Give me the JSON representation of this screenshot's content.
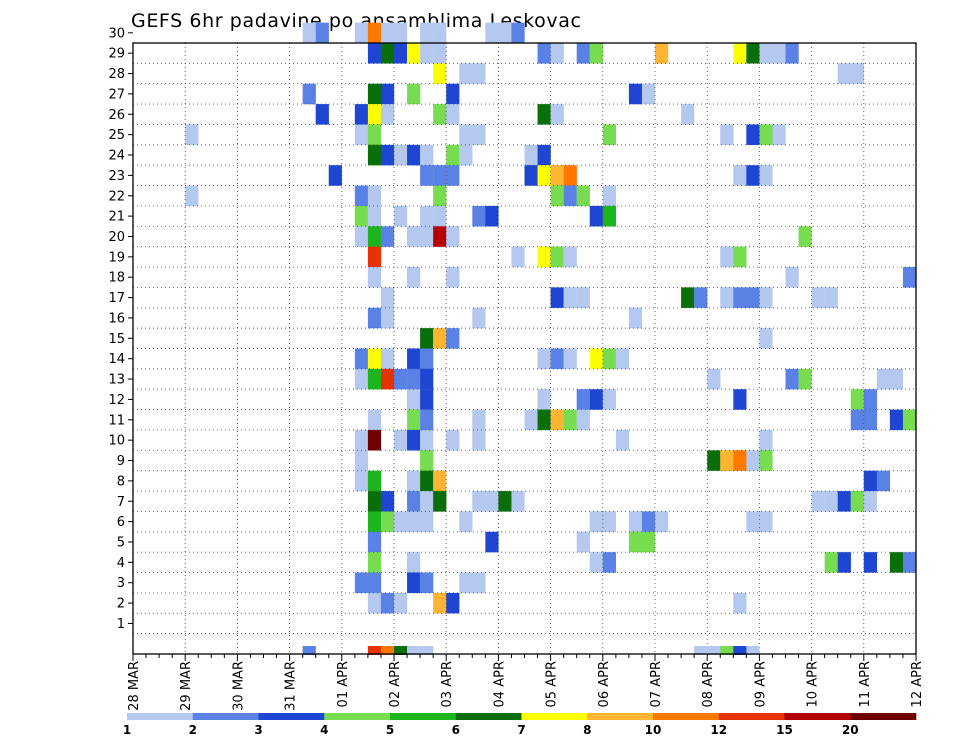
{
  "chart_data": {
    "type": "heatmap",
    "title": "GEFS 6hr padavine po ansamblima Leskovac",
    "xlabel": "",
    "ylabel": "",
    "y_members": [
      1,
      2,
      3,
      4,
      5,
      6,
      7,
      8,
      9,
      10,
      11,
      12,
      13,
      14,
      15,
      16,
      17,
      18,
      19,
      20,
      21,
      22,
      23,
      24,
      25,
      26,
      27,
      28,
      29,
      30
    ],
    "ylim": [
      0,
      30
    ],
    "x_ticks": [
      "28 MAR",
      "29 MAR",
      "30 MAR",
      "31 MAR",
      "01 APR",
      "02 APR",
      "03 APR",
      "04 APR",
      "05 APR",
      "06 APR",
      "07 APR",
      "08 APR",
      "09 APR",
      "10 APR",
      "11 APR",
      "12 APR"
    ],
    "x_steps_per_day": 4,
    "x_step_hours": 6,
    "xlim_steps": [
      0,
      60
    ],
    "colorbar": {
      "ticks": [
        "1",
        "2",
        "3",
        "4",
        "5",
        "6",
        "7",
        "8",
        "10",
        "12",
        "15",
        "20"
      ],
      "bins": [
        {
          "lo": 1,
          "hi": 2,
          "color": "#b4c8f0"
        },
        {
          "lo": 2,
          "hi": 3,
          "color": "#5a82e6"
        },
        {
          "lo": 3,
          "hi": 4,
          "color": "#1e46d2"
        },
        {
          "lo": 4,
          "hi": 5,
          "color": "#78dc50"
        },
        {
          "lo": 5,
          "hi": 6,
          "color": "#1eb41e"
        },
        {
          "lo": 6,
          "hi": 7,
          "color": "#0a6e0a"
        },
        {
          "lo": 7,
          "hi": 8,
          "color": "#ffff00"
        },
        {
          "lo": 8,
          "hi": 10,
          "color": "#ffb432"
        },
        {
          "lo": 10,
          "hi": 12,
          "color": "#ff7800"
        },
        {
          "lo": 12,
          "hi": 15,
          "color": "#e63200"
        },
        {
          "lo": 15,
          "hi": 20,
          "color": "#b40000"
        },
        {
          "lo": 20,
          "hi": 30,
          "color": "#6e0000"
        }
      ]
    },
    "cells": [
      [
        30,
        13,
        1.5
      ],
      [
        30,
        14,
        2.5
      ],
      [
        30,
        17,
        1.5
      ],
      [
        30,
        18,
        10.5
      ],
      [
        30,
        19,
        1.5
      ],
      [
        30,
        20,
        1.5
      ],
      [
        30,
        22,
        1.5
      ],
      [
        30,
        23,
        1.5
      ],
      [
        30,
        27,
        1.5
      ],
      [
        30,
        28,
        1.5
      ],
      [
        30,
        29,
        2.5
      ],
      [
        29,
        18,
        3.5
      ],
      [
        29,
        19,
        6.5
      ],
      [
        29,
        20,
        3.5
      ],
      [
        29,
        21,
        7.5
      ],
      [
        29,
        22,
        1.5
      ],
      [
        29,
        23,
        1.5
      ],
      [
        29,
        31,
        2.5
      ],
      [
        29,
        32,
        1.5
      ],
      [
        29,
        34,
        2.5
      ],
      [
        29,
        35,
        4.5
      ],
      [
        29,
        40,
        9
      ],
      [
        29,
        46,
        7.5
      ],
      [
        29,
        47,
        6.5
      ],
      [
        29,
        48,
        1.5
      ],
      [
        29,
        49,
        1.5
      ],
      [
        29,
        50,
        2.5
      ],
      [
        28,
        23,
        7.5
      ],
      [
        28,
        25,
        1.5
      ],
      [
        28,
        26,
        1.5
      ],
      [
        28,
        54,
        1.5
      ],
      [
        28,
        55,
        1.5
      ],
      [
        27,
        13,
        2.5
      ],
      [
        27,
        18,
        6.5
      ],
      [
        27,
        19,
        3.5
      ],
      [
        27,
        21,
        4.5
      ],
      [
        27,
        24,
        3.5
      ],
      [
        27,
        38,
        3.5
      ],
      [
        27,
        39,
        1.5
      ],
      [
        26,
        14,
        3.5
      ],
      [
        26,
        17,
        3.5
      ],
      [
        26,
        18,
        7.5
      ],
      [
        26,
        19,
        1.5
      ],
      [
        26,
        23,
        4.5
      ],
      [
        26,
        24,
        1.5
      ],
      [
        26,
        31,
        6.5
      ],
      [
        26,
        32,
        1.5
      ],
      [
        26,
        42,
        1.5
      ],
      [
        25,
        4,
        1.5
      ],
      [
        25,
        17,
        1.5
      ],
      [
        25,
        18,
        4.5
      ],
      [
        25,
        25,
        1.5
      ],
      [
        25,
        26,
        1.5
      ],
      [
        25,
        36,
        4.5
      ],
      [
        25,
        45,
        1.5
      ],
      [
        25,
        47,
        3.5
      ],
      [
        25,
        48,
        4.5
      ],
      [
        25,
        49,
        1.5
      ],
      [
        24,
        18,
        6.5
      ],
      [
        24,
        19,
        3.5
      ],
      [
        24,
        20,
        1.5
      ],
      [
        24,
        21,
        3.5
      ],
      [
        24,
        22,
        1.5
      ],
      [
        24,
        24,
        4.5
      ],
      [
        24,
        25,
        1.5
      ],
      [
        24,
        30,
        1.5
      ],
      [
        24,
        31,
        3.5
      ],
      [
        23,
        15,
        3.5
      ],
      [
        23,
        22,
        2.5
      ],
      [
        23,
        23,
        2.5
      ],
      [
        23,
        24,
        2.5
      ],
      [
        23,
        30,
        3.5
      ],
      [
        23,
        31,
        7.5
      ],
      [
        23,
        32,
        9
      ],
      [
        23,
        33,
        11
      ],
      [
        23,
        46,
        1.5
      ],
      [
        23,
        47,
        3.5
      ],
      [
        23,
        48,
        1.5
      ],
      [
        22,
        4,
        1.5
      ],
      [
        22,
        17,
        2.5
      ],
      [
        22,
        18,
        1.5
      ],
      [
        22,
        23,
        4.5
      ],
      [
        22,
        32,
        4.5
      ],
      [
        22,
        33,
        2.5
      ],
      [
        22,
        34,
        4.5
      ],
      [
        22,
        36,
        1.5
      ],
      [
        21,
        17,
        4.5
      ],
      [
        21,
        18,
        1.5
      ],
      [
        21,
        20,
        1.5
      ],
      [
        21,
        22,
        1.5
      ],
      [
        21,
        23,
        1.5
      ],
      [
        21,
        26,
        2.5
      ],
      [
        21,
        27,
        3.5
      ],
      [
        21,
        35,
        3.5
      ],
      [
        21,
        36,
        5.5
      ],
      [
        20,
        17,
        1.5
      ],
      [
        20,
        18,
        5.5
      ],
      [
        20,
        19,
        2.5
      ],
      [
        20,
        21,
        1.5
      ],
      [
        20,
        22,
        1.5
      ],
      [
        20,
        23,
        17
      ],
      [
        20,
        24,
        1.5
      ],
      [
        20,
        51,
        4.5
      ],
      [
        19,
        18,
        13
      ],
      [
        19,
        29,
        1.5
      ],
      [
        19,
        31,
        7.5
      ],
      [
        19,
        32,
        4.5
      ],
      [
        19,
        33,
        1.5
      ],
      [
        19,
        45,
        1.5
      ],
      [
        19,
        46,
        4.5
      ],
      [
        18,
        18,
        1.5
      ],
      [
        18,
        21,
        1.5
      ],
      [
        18,
        24,
        1.5
      ],
      [
        18,
        50,
        1.5
      ],
      [
        18,
        59,
        2.5
      ],
      [
        17,
        19,
        1.5
      ],
      [
        17,
        32,
        3.5
      ],
      [
        17,
        33,
        1.5
      ],
      [
        17,
        34,
        1.5
      ],
      [
        17,
        42,
        6.5
      ],
      [
        17,
        43,
        2.5
      ],
      [
        17,
        45,
        1.5
      ],
      [
        17,
        46,
        2.5
      ],
      [
        17,
        47,
        2.5
      ],
      [
        17,
        48,
        1.5
      ],
      [
        17,
        52,
        1.5
      ],
      [
        17,
        53,
        1.5
      ],
      [
        16,
        18,
        2.5
      ],
      [
        16,
        19,
        1.5
      ],
      [
        16,
        26,
        1.5
      ],
      [
        16,
        38,
        1.5
      ],
      [
        15,
        22,
        6.5
      ],
      [
        15,
        23,
        9
      ],
      [
        15,
        24,
        2.5
      ],
      [
        15,
        48,
        1.5
      ],
      [
        14,
        17,
        2.5
      ],
      [
        14,
        18,
        7.5
      ],
      [
        14,
        19,
        1.5
      ],
      [
        14,
        21,
        3.5
      ],
      [
        14,
        22,
        2.5
      ],
      [
        14,
        31,
        1.5
      ],
      [
        14,
        32,
        2.5
      ],
      [
        14,
        33,
        1.5
      ],
      [
        14,
        35,
        7.5
      ],
      [
        14,
        36,
        4.5
      ],
      [
        14,
        37,
        1.5
      ],
      [
        13,
        17,
        1.5
      ],
      [
        13,
        18,
        5.5
      ],
      [
        13,
        19,
        13
      ],
      [
        13,
        20,
        2.5
      ],
      [
        13,
        21,
        2.5
      ],
      [
        13,
        22,
        3.5
      ],
      [
        13,
        44,
        1.5
      ],
      [
        13,
        50,
        2.5
      ],
      [
        13,
        51,
        4.5
      ],
      [
        13,
        57,
        1.5
      ],
      [
        13,
        58,
        1.5
      ],
      [
        12,
        21,
        1.5
      ],
      [
        12,
        22,
        3.5
      ],
      [
        12,
        31,
        1.5
      ],
      [
        12,
        34,
        2.5
      ],
      [
        12,
        35,
        3.5
      ],
      [
        12,
        36,
        1.5
      ],
      [
        12,
        46,
        3.5
      ],
      [
        12,
        55,
        4.5
      ],
      [
        12,
        56,
        2.5
      ],
      [
        11,
        18,
        1.5
      ],
      [
        11,
        21,
        4.5
      ],
      [
        11,
        22,
        2.5
      ],
      [
        11,
        26,
        1.5
      ],
      [
        11,
        30,
        1.5
      ],
      [
        11,
        31,
        6.5
      ],
      [
        11,
        32,
        9
      ],
      [
        11,
        33,
        4.5
      ],
      [
        11,
        34,
        1.5
      ],
      [
        11,
        55,
        2.5
      ],
      [
        11,
        56,
        2.5
      ],
      [
        11,
        58,
        3.5
      ],
      [
        11,
        59,
        4.5
      ],
      [
        10,
        17,
        1.5
      ],
      [
        10,
        18,
        25
      ],
      [
        10,
        20,
        1.5
      ],
      [
        10,
        21,
        3.5
      ],
      [
        10,
        22,
        1.5
      ],
      [
        10,
        24,
        1.5
      ],
      [
        10,
        26,
        1.5
      ],
      [
        10,
        37,
        1.5
      ],
      [
        10,
        48,
        1.5
      ],
      [
        9,
        17,
        1.5
      ],
      [
        9,
        22,
        4.5
      ],
      [
        9,
        44,
        6.5
      ],
      [
        9,
        45,
        9
      ],
      [
        9,
        46,
        11
      ],
      [
        9,
        47,
        1.5
      ],
      [
        9,
        48,
        4.5
      ],
      [
        8,
        17,
        1.5
      ],
      [
        8,
        18,
        5.5
      ],
      [
        8,
        21,
        1.5
      ],
      [
        8,
        22,
        6.5
      ],
      [
        8,
        23,
        9
      ],
      [
        8,
        56,
        3.5
      ],
      [
        8,
        57,
        2.5
      ],
      [
        7,
        18,
        6.5
      ],
      [
        7,
        19,
        3.5
      ],
      [
        7,
        21,
        2.5
      ],
      [
        7,
        22,
        1.5
      ],
      [
        7,
        23,
        6.5
      ],
      [
        7,
        26,
        1.5
      ],
      [
        7,
        27,
        1.5
      ],
      [
        7,
        28,
        6.5
      ],
      [
        7,
        29,
        1.5
      ],
      [
        7,
        52,
        1.5
      ],
      [
        7,
        53,
        1.5
      ],
      [
        7,
        54,
        3.5
      ],
      [
        7,
        55,
        4.5
      ],
      [
        7,
        56,
        1.5
      ],
      [
        6,
        18,
        5.5
      ],
      [
        6,
        19,
        4.5
      ],
      [
        6,
        20,
        1.5
      ],
      [
        6,
        21,
        1.5
      ],
      [
        6,
        22,
        1.5
      ],
      [
        6,
        25,
        1.5
      ],
      [
        6,
        35,
        1.5
      ],
      [
        6,
        36,
        1.5
      ],
      [
        6,
        38,
        1.5
      ],
      [
        6,
        39,
        2.5
      ],
      [
        6,
        40,
        1.5
      ],
      [
        6,
        47,
        1.5
      ],
      [
        6,
        48,
        1.5
      ],
      [
        5,
        18,
        2.5
      ],
      [
        5,
        27,
        3.5
      ],
      [
        5,
        34,
        1.5
      ],
      [
        5,
        38,
        4.5
      ],
      [
        5,
        39,
        4.5
      ],
      [
        4,
        18,
        4.5
      ],
      [
        4,
        21,
        1.5
      ],
      [
        4,
        35,
        1.5
      ],
      [
        4,
        36,
        2.5
      ],
      [
        4,
        53,
        4.5
      ],
      [
        4,
        54,
        3.5
      ],
      [
        4,
        56,
        3.5
      ],
      [
        4,
        58,
        6.5
      ],
      [
        4,
        59,
        2.5
      ],
      [
        3,
        17,
        2.5
      ],
      [
        3,
        18,
        2.5
      ],
      [
        3,
        21,
        3.5
      ],
      [
        3,
        22,
        2.5
      ],
      [
        3,
        25,
        1.5
      ],
      [
        3,
        26,
        1.5
      ],
      [
        2,
        18,
        1.5
      ],
      [
        2,
        19,
        2.5
      ],
      [
        2,
        20,
        1.5
      ],
      [
        2,
        23,
        9
      ],
      [
        2,
        24,
        3.5
      ],
      [
        2,
        46,
        1.5
      ]
    ],
    "edge_cells": [
      [
        13,
        2.5
      ],
      [
        18,
        13
      ],
      [
        19,
        11
      ],
      [
        20,
        6.5
      ],
      [
        21,
        1.5
      ],
      [
        22,
        1.5
      ],
      [
        43,
        1.5
      ],
      [
        44,
        1.5
      ],
      [
        45,
        4.5
      ],
      [
        46,
        3.5
      ],
      [
        47,
        1.5
      ]
    ]
  }
}
